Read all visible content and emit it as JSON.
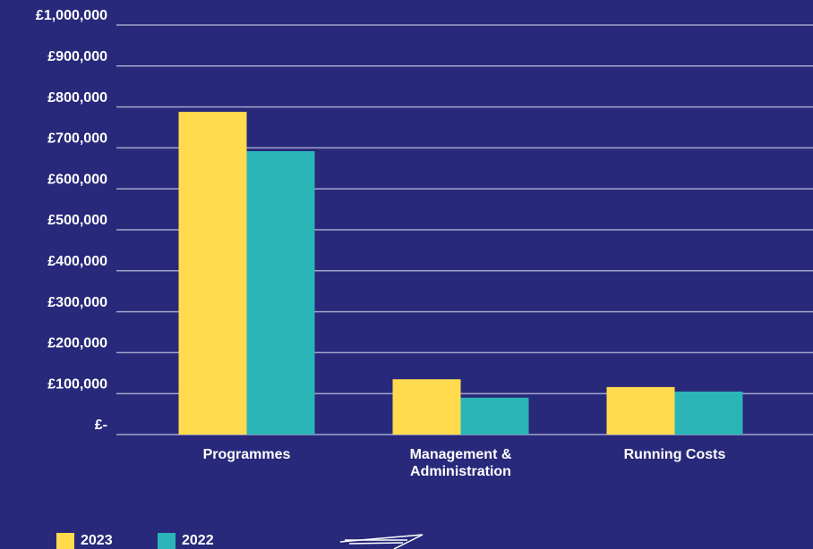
{
  "chart_data": {
    "type": "bar",
    "categories": [
      "Programmes",
      "Management & Administration",
      "Running Costs"
    ],
    "series": [
      {
        "name": "2023",
        "color": "#ffdb4d",
        "values": [
          788000,
          135000,
          116000
        ]
      },
      {
        "name": "2022",
        "color": "#2bb5b8",
        "values": [
          692000,
          90000,
          105000
        ]
      }
    ],
    "ylim": [
      0,
      1000000
    ],
    "yticks": [
      {
        "value": 0,
        "label": "£-"
      },
      {
        "value": 100000,
        "label": "£100,000"
      },
      {
        "value": 200000,
        "label": "£200,000"
      },
      {
        "value": 300000,
        "label": "£300,000"
      },
      {
        "value": 400000,
        "label": "£400,000"
      },
      {
        "value": 500000,
        "label": "£500,000"
      },
      {
        "value": 600000,
        "label": "£600,000"
      },
      {
        "value": 700000,
        "label": "£700,000"
      },
      {
        "value": 800000,
        "label": "£800,000"
      },
      {
        "value": 900000,
        "label": "£900,000"
      },
      {
        "value": 1000000,
        "label": "£1,000,000"
      }
    ],
    "grid": true
  }
}
